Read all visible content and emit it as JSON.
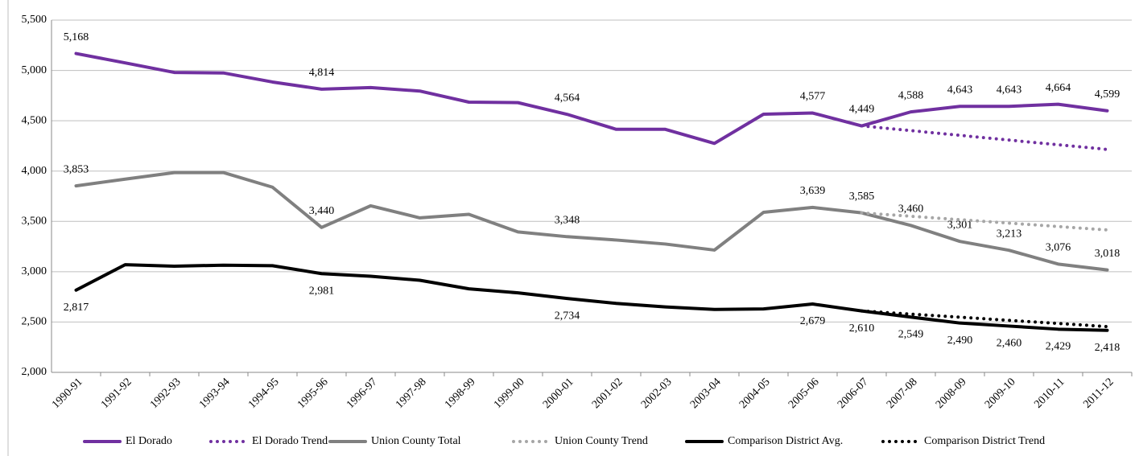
{
  "chart_data": {
    "type": "line",
    "categories": [
      "1990-91",
      "1991-92",
      "1992-93",
      "1993-94",
      "1994-95",
      "1995-96",
      "1996-97",
      "1997-98",
      "1998-99",
      "1999-00",
      "2000-01",
      "2001-02",
      "2002-03",
      "2003-04",
      "2004-05",
      "2005-06",
      "2006-07",
      "2007-08",
      "2008-09",
      "2009-10",
      "2010-11",
      "2011-12"
    ],
    "ylim": [
      2000,
      5500
    ],
    "yticks": [
      {
        "value": 2000,
        "label": "2,000"
      },
      {
        "value": 2500,
        "label": "2,500"
      },
      {
        "value": 3000,
        "label": "3,000"
      },
      {
        "value": 3500,
        "label": "3,500"
      },
      {
        "value": 4000,
        "label": "4,000"
      },
      {
        "value": 4500,
        "label": "4,500"
      },
      {
        "value": 5000,
        "label": "5,000"
      },
      {
        "value": 5500,
        "label": "5,500"
      }
    ],
    "grid": true,
    "legend": "bottom",
    "series": [
      {
        "name": "El Dorado",
        "color": "#7030a0",
        "style": "solid",
        "values": [
          5168,
          5075,
          4980,
          4975,
          4885,
          4814,
          4830,
          4795,
          4685,
          4680,
          4564,
          4415,
          4415,
          4275,
          4565,
          4577,
          4449,
          4588,
          4643,
          4643,
          4664,
          4599
        ],
        "value_labels": [
          "5,168",
          null,
          null,
          null,
          null,
          "4,814",
          null,
          null,
          null,
          null,
          "4,564",
          null,
          null,
          null,
          null,
          "4,577",
          "4,449",
          "4,588",
          "4,643",
          "4,643",
          "4,664",
          "4,599"
        ]
      },
      {
        "name": "El Dorado Trend",
        "color": "#7030a0",
        "style": "dotted",
        "values": [
          null,
          null,
          null,
          null,
          null,
          null,
          null,
          null,
          null,
          null,
          null,
          null,
          null,
          null,
          null,
          null,
          4449,
          4402,
          4355,
          4308,
          4262,
          4215
        ]
      },
      {
        "name": "Union County Total",
        "color": "#808080",
        "style": "solid",
        "values": [
          3853,
          3920,
          3985,
          3985,
          3840,
          3440,
          3655,
          3535,
          3570,
          3395,
          3348,
          3315,
          3275,
          3215,
          3590,
          3639,
          3585,
          3460,
          3301,
          3213,
          3076,
          3018
        ],
        "value_labels": [
          "3,853",
          null,
          null,
          null,
          null,
          "3,440",
          null,
          null,
          null,
          null,
          "3,348",
          null,
          null,
          null,
          null,
          "3,639",
          "3,585",
          "3,460",
          "3,301",
          "3,213",
          "3,076",
          "3,018"
        ]
      },
      {
        "name": "Union County Trend",
        "color": "#a6a6a6",
        "style": "dotted",
        "values": [
          null,
          null,
          null,
          null,
          null,
          null,
          null,
          null,
          null,
          null,
          null,
          null,
          null,
          null,
          null,
          null,
          3585,
          3551,
          3517,
          3483,
          3449,
          3415
        ]
      },
      {
        "name": "Comparison District Avg.",
        "color": "#000000",
        "style": "solid",
        "values": [
          2817,
          3070,
          3055,
          3065,
          3060,
          2981,
          2955,
          2915,
          2830,
          2790,
          2734,
          2685,
          2650,
          2625,
          2630,
          2679,
          2610,
          2549,
          2490,
          2460,
          2429,
          2418
        ],
        "value_labels": [
          "2,817",
          null,
          null,
          null,
          null,
          "2,981",
          null,
          null,
          null,
          null,
          "2,734",
          null,
          null,
          null,
          null,
          "2,679",
          "2,610",
          "2,549",
          "2,490",
          "2,460",
          "2,429",
          "2,418"
        ]
      },
      {
        "name": "Comparison District Trend",
        "color": "#000000",
        "style": "dotted",
        "values": [
          null,
          null,
          null,
          null,
          null,
          null,
          null,
          null,
          null,
          null,
          null,
          null,
          null,
          null,
          null,
          null,
          2610,
          2579,
          2548,
          2517,
          2486,
          2455
        ]
      }
    ]
  }
}
